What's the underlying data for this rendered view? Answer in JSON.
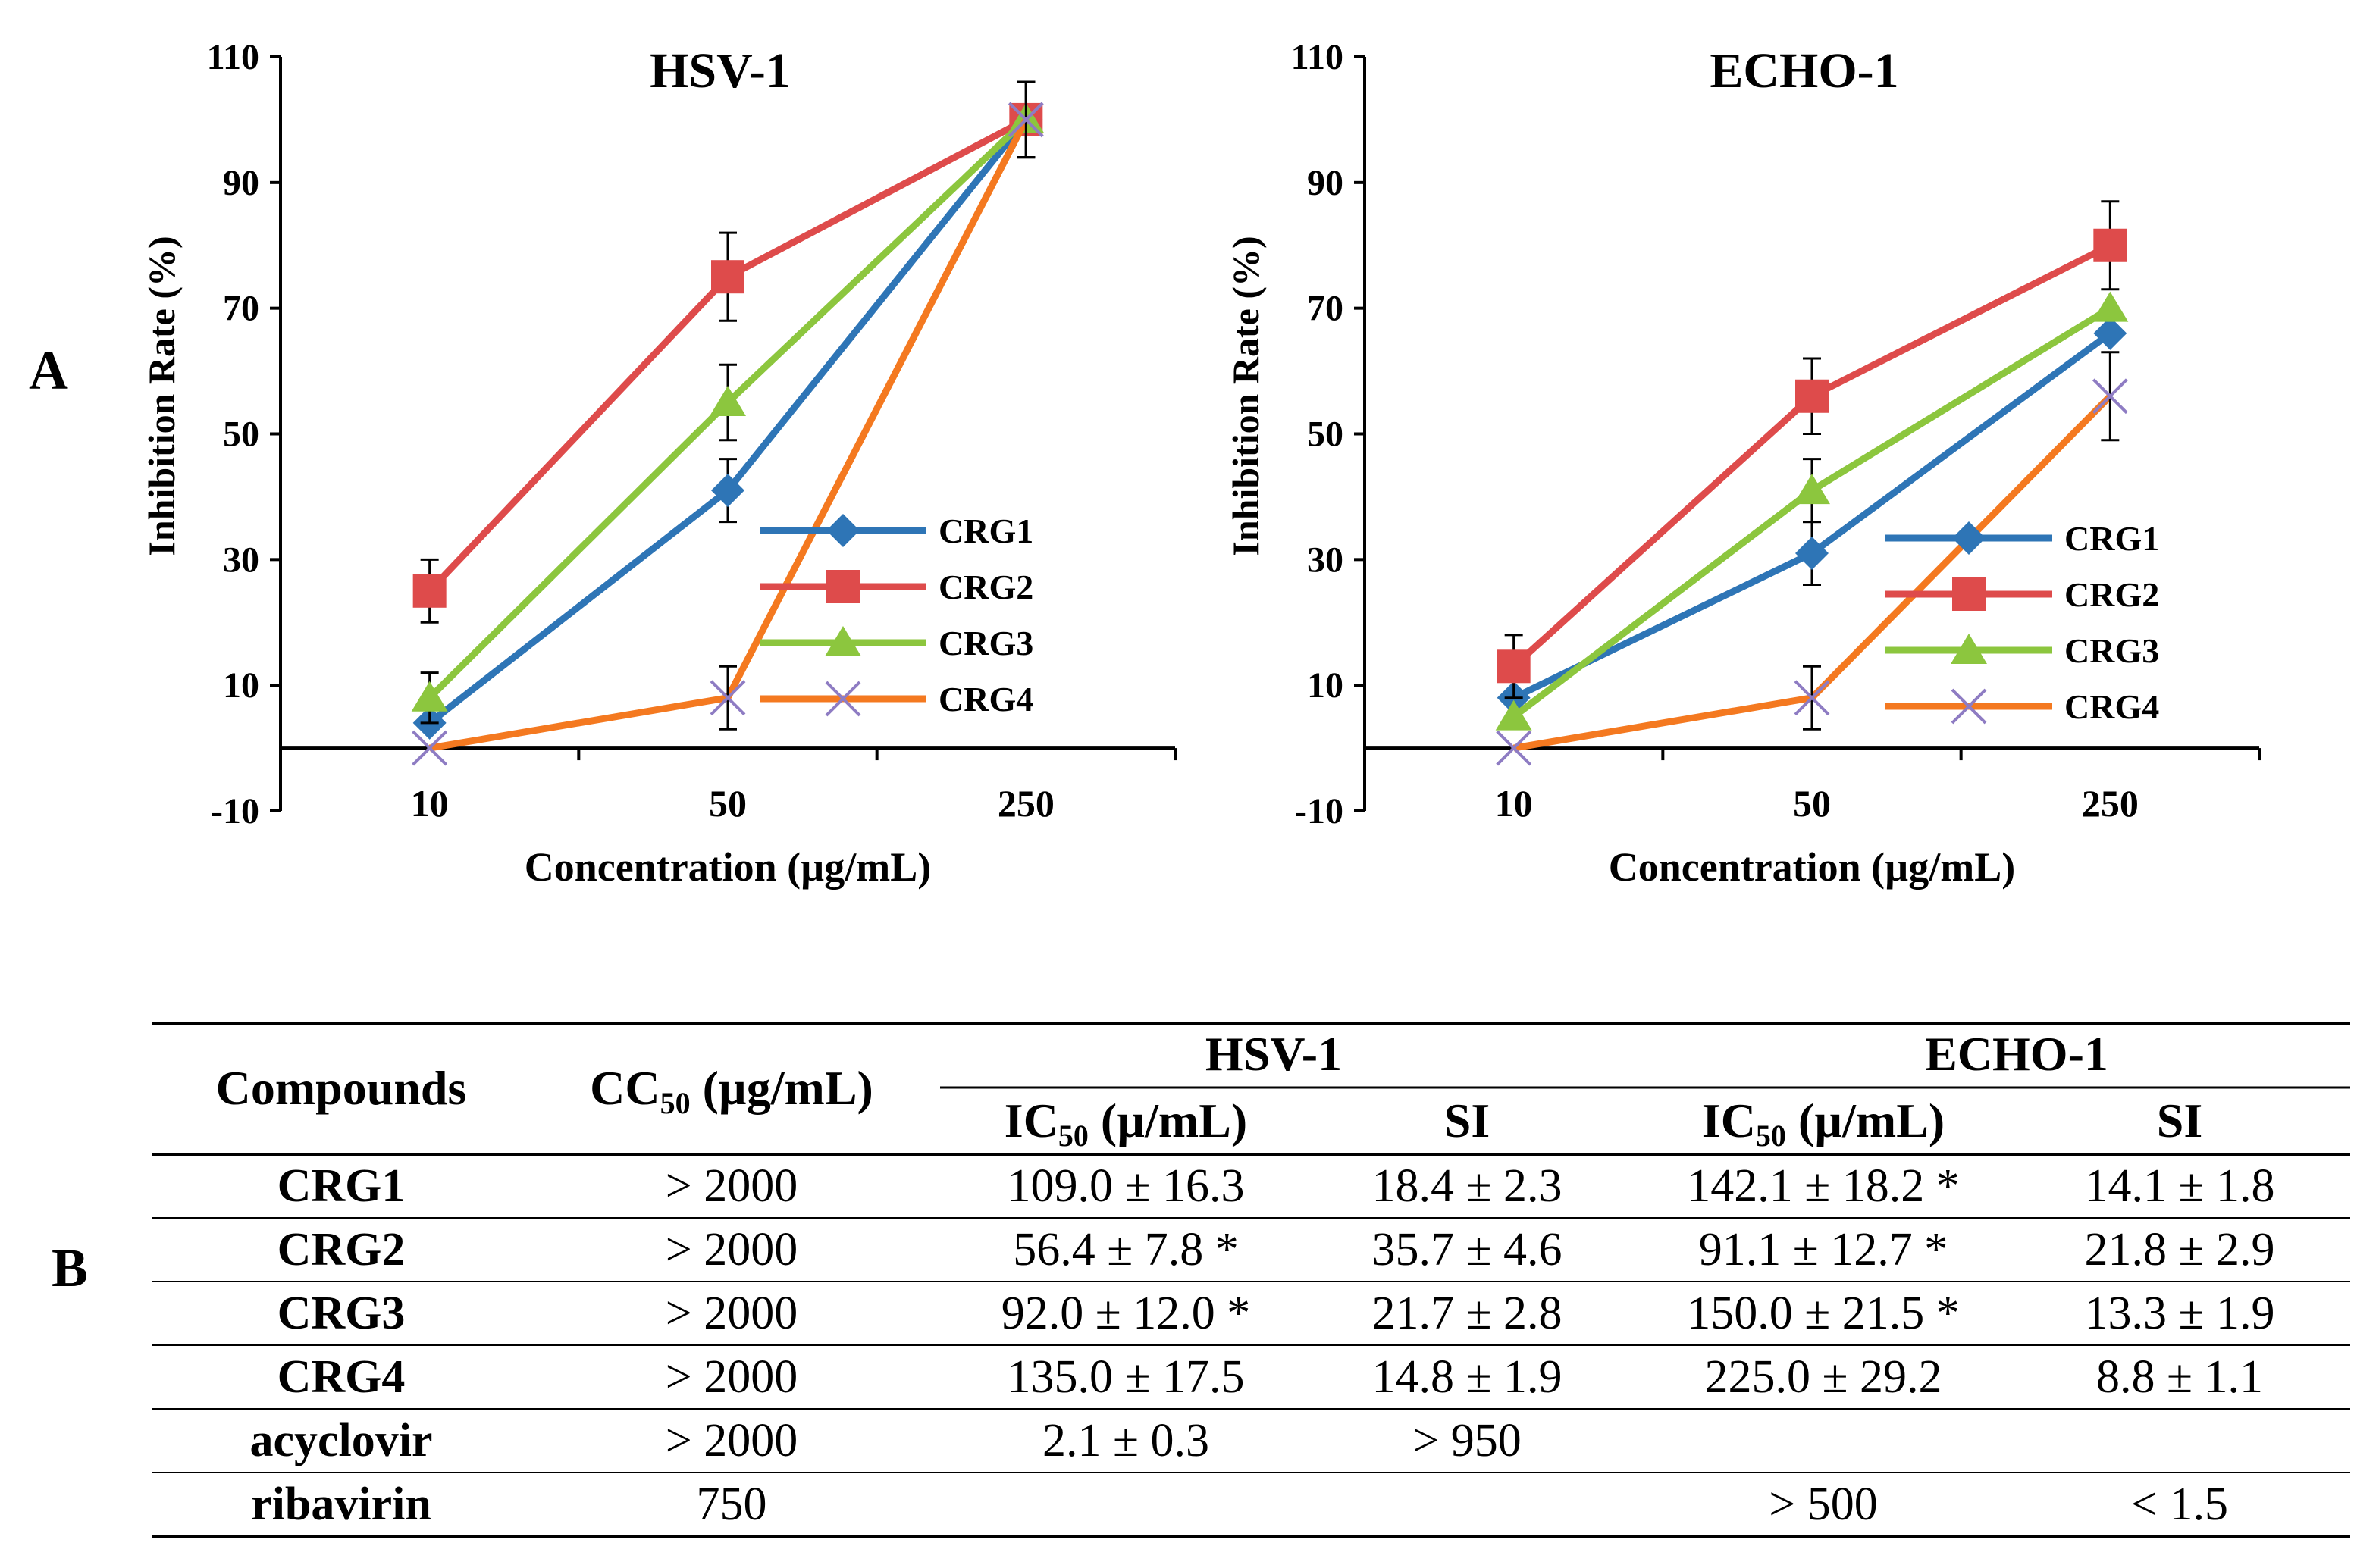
{
  "panel_labels": {
    "a": "A",
    "b": "B"
  },
  "chart_data": [
    {
      "type": "line",
      "title": "HSV-1",
      "xlabel": "Concentration (µg/mL)",
      "ylabel": "Inhibition Rate (%)",
      "categories": [
        "10",
        "50",
        "250"
      ],
      "ylim": [
        -10,
        110
      ],
      "yticks": [
        -10,
        10,
        30,
        50,
        70,
        90,
        110
      ],
      "legend_position": "right",
      "series": [
        {
          "name": "CRG1",
          "color": "#2E75B6",
          "marker": "diamond",
          "values": [
            4,
            41,
            100
          ],
          "errors": [
            null,
            5,
            6
          ]
        },
        {
          "name": "CRG2",
          "color": "#DE4B4B",
          "marker": "square",
          "values": [
            25,
            75,
            100
          ],
          "errors": [
            5,
            7,
            6
          ]
        },
        {
          "name": "CRG3",
          "color": "#8CC63E",
          "marker": "triangle",
          "values": [
            8,
            55,
            100
          ],
          "errors": [
            4,
            6,
            6
          ]
        },
        {
          "name": "CRG4",
          "color": "#F47920",
          "marker": "x",
          "values": [
            0,
            8,
            100
          ],
          "errors": [
            null,
            5,
            6
          ]
        }
      ]
    },
    {
      "type": "line",
      "title": "ECHO-1",
      "xlabel": "Concentration (µg/mL)",
      "ylabel": "Inhibition Rate (%)",
      "categories": [
        "10",
        "50",
        "250"
      ],
      "ylim": [
        -10,
        110
      ],
      "yticks": [
        -10,
        10,
        30,
        50,
        70,
        90,
        110
      ],
      "legend_position": "right",
      "series": [
        {
          "name": "CRG1",
          "color": "#2E75B6",
          "marker": "diamond",
          "values": [
            8,
            31,
            66
          ],
          "errors": [
            null,
            5,
            null
          ]
        },
        {
          "name": "CRG2",
          "color": "#DE4B4B",
          "marker": "square",
          "values": [
            13,
            56,
            80
          ],
          "errors": [
            5,
            6,
            7
          ]
        },
        {
          "name": "CRG3",
          "color": "#8CC63E",
          "marker": "triangle",
          "values": [
            5,
            41,
            70
          ],
          "errors": [
            null,
            5,
            null
          ]
        },
        {
          "name": "CRG4",
          "color": "#F47920",
          "marker": "x",
          "values": [
            0,
            8,
            56
          ],
          "errors": [
            null,
            5,
            7
          ]
        }
      ]
    }
  ],
  "table": {
    "headers": {
      "compounds": "Compounds",
      "cc50_pre": "CC",
      "cc50_sub": "50",
      "cc50_post": " (µg/mL)",
      "hsv": "HSV-1",
      "echo": "ECHO-1",
      "ic50_pre": "IC",
      "ic50_sub": "50",
      "ic50_post": " (µ/mL)",
      "si": "SI"
    },
    "rows": [
      {
        "name": "CRG1",
        "cc50": "> 2000",
        "hsv_ic50": "109.0 ± 16.3",
        "hsv_si": "18.4 ± 2.3",
        "echo_ic50": "142.1 ± 18.2 *",
        "echo_si": "14.1 ± 1.8"
      },
      {
        "name": "CRG2",
        "cc50": "> 2000",
        "hsv_ic50": "56.4 ± 7.8 *",
        "hsv_si": "35.7 ± 4.6",
        "echo_ic50": "91.1 ± 12.7 *",
        "echo_si": "21.8 ± 2.9"
      },
      {
        "name": "CRG3",
        "cc50": "> 2000",
        "hsv_ic50": "92.0 ± 12.0 *",
        "hsv_si": "21.7 ± 2.8",
        "echo_ic50": "150.0 ± 21.5 *",
        "echo_si": "13.3 ± 1.9"
      },
      {
        "name": "CRG4",
        "cc50": "> 2000",
        "hsv_ic50": "135.0 ± 17.5",
        "hsv_si": "14.8 ± 1.9",
        "echo_ic50": "225.0 ± 29.2",
        "echo_si": "8.8 ± 1.1"
      },
      {
        "name": "acyclovir",
        "cc50": "> 2000",
        "hsv_ic50": "2.1 ± 0.3",
        "hsv_si": "> 950",
        "echo_ic50": "",
        "echo_si": ""
      },
      {
        "name": "ribavirin",
        "cc50": "750",
        "hsv_ic50": "",
        "hsv_si": "",
        "echo_ic50": "> 500",
        "echo_si": "< 1.5"
      }
    ]
  }
}
